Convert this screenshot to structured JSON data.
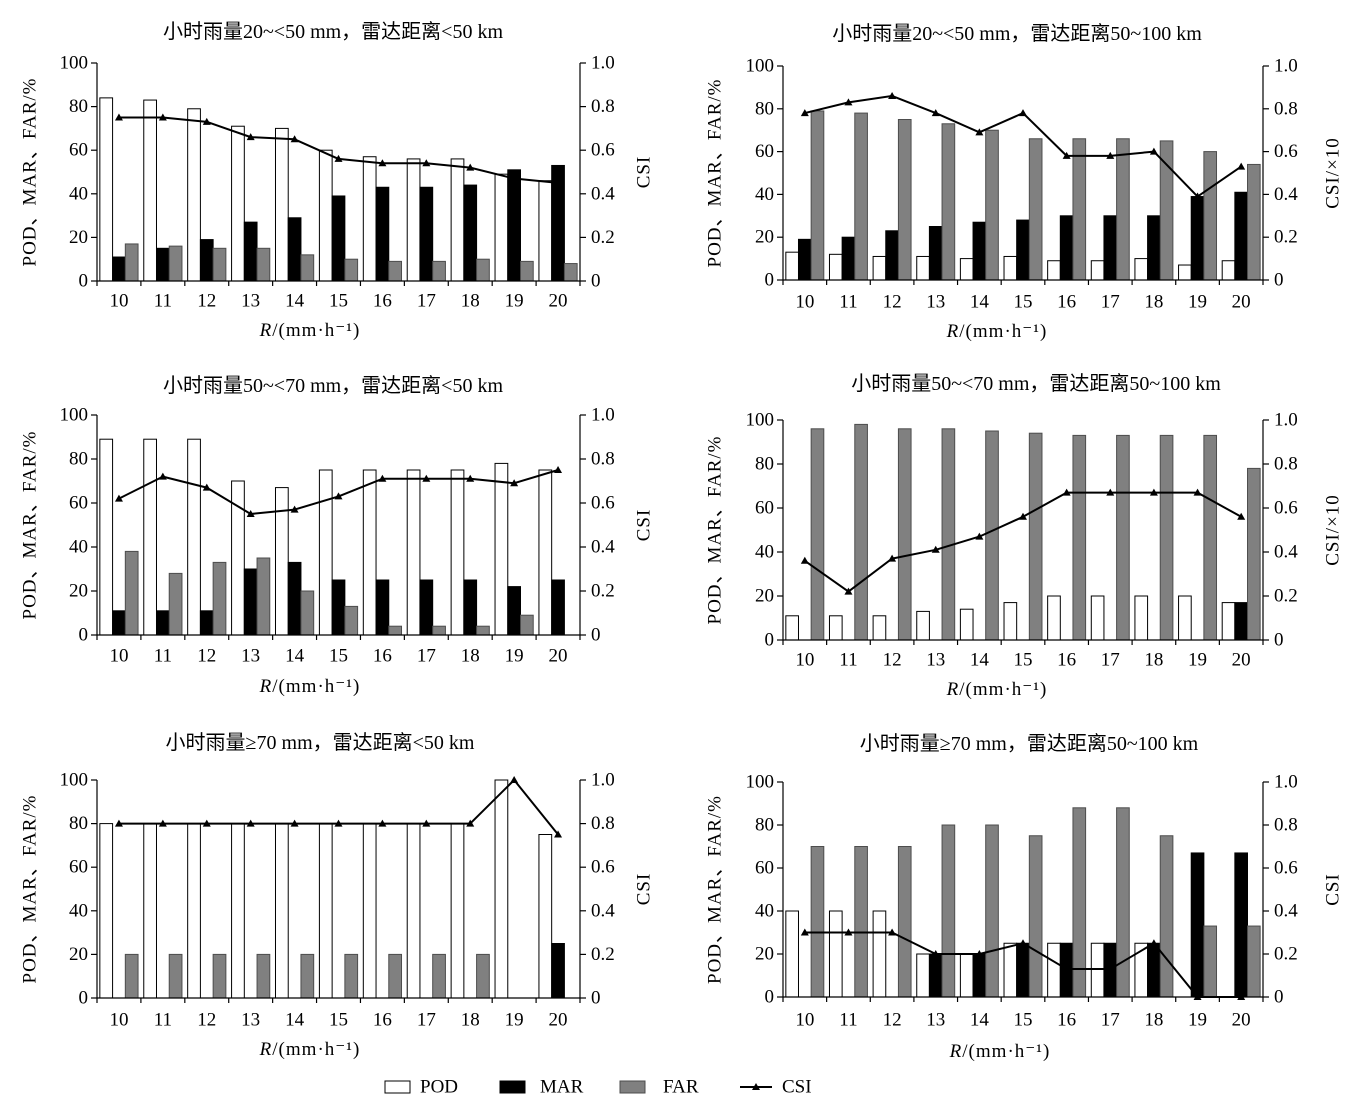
{
  "legend_position": "bottom-center",
  "legend": [
    {
      "label": "POD",
      "symbol": "box",
      "color": "#ffffff"
    },
    {
      "label": "MAR",
      "symbol": "box",
      "color": "#000000"
    },
    {
      "label": "FAR",
      "symbol": "box",
      "color": "#808080"
    },
    {
      "label": "CSI",
      "symbol": "line-triangle",
      "color": "#000000"
    }
  ],
  "chart_data": [
    {
      "type": "bar",
      "title": "小时雨量20~<50 mm，雷达距离<50 km",
      "xlabel": "R/(mm·h⁻¹)",
      "ylabel": "POD、MAR、FAR/%",
      "y2label": "CSI",
      "categories": [
        "10",
        "11",
        "12",
        "13",
        "14",
        "15",
        "16",
        "17",
        "18",
        "19",
        "20"
      ],
      "ylim": [
        0,
        100
      ],
      "y2lim": [
        0,
        1.0
      ],
      "yticks": [
        "0",
        "20",
        "40",
        "60",
        "80",
        "100"
      ],
      "y2ticks": [
        "0",
        "0.2",
        "0.4",
        "0.6",
        "0.8",
        "1.0"
      ],
      "grid": false,
      "series": [
        {
          "name": "POD",
          "type": "bar",
          "axis": "left",
          "values": [
            84,
            83,
            79,
            71,
            70,
            60,
            57,
            56,
            56,
            49,
            46
          ]
        },
        {
          "name": "MAR",
          "type": "bar",
          "axis": "left",
          "values": [
            11,
            15,
            19,
            27,
            29,
            39,
            43,
            43,
            44,
            51,
            53
          ]
        },
        {
          "name": "FAR",
          "type": "bar",
          "axis": "left",
          "values": [
            17,
            16,
            15,
            15,
            12,
            10,
            9,
            9,
            10,
            9,
            8
          ]
        },
        {
          "name": "CSI",
          "type": "line",
          "axis": "right",
          "values": [
            0.75,
            0.75,
            0.73,
            0.66,
            0.65,
            0.56,
            0.54,
            0.54,
            0.52,
            0.47,
            0.45
          ]
        }
      ]
    },
    {
      "type": "bar",
      "title": "小时雨量20~<50 mm，雷达距离50~100 km",
      "xlabel": "R/(mm·h⁻¹)",
      "ylabel": "POD、MAR、FAR/%",
      "y2label": "CSI/×10",
      "categories": [
        "10",
        "11",
        "12",
        "13",
        "14",
        "15",
        "16",
        "17",
        "18",
        "19",
        "20"
      ],
      "ylim": [
        0,
        100
      ],
      "y2lim": [
        0,
        1.0
      ],
      "yticks": [
        "0",
        "20",
        "40",
        "60",
        "80",
        "100"
      ],
      "y2ticks": [
        "0",
        "0.2",
        "0.4",
        "0.6",
        "0.8",
        "1.0"
      ],
      "grid": false,
      "series": [
        {
          "name": "POD",
          "type": "bar",
          "axis": "left",
          "values": [
            13,
            12,
            11,
            11,
            10,
            11,
            9,
            9,
            10,
            7,
            9
          ]
        },
        {
          "name": "MAR",
          "type": "bar",
          "axis": "left",
          "values": [
            19,
            20,
            23,
            25,
            27,
            28,
            30,
            30,
            30,
            39,
            41
          ]
        },
        {
          "name": "FAR",
          "type": "bar",
          "axis": "left",
          "values": [
            79,
            78,
            75,
            73,
            70,
            66,
            66,
            66,
            65,
            60,
            54
          ]
        },
        {
          "name": "CSI",
          "type": "line",
          "axis": "right",
          "values": [
            0.78,
            0.83,
            0.86,
            0.78,
            0.69,
            0.78,
            0.58,
            0.58,
            0.6,
            0.39,
            0.53
          ]
        }
      ]
    },
    {
      "type": "bar",
      "title": "小时雨量50~<70 mm，雷达距离<50 km",
      "xlabel": "R/(mm·h⁻¹)",
      "ylabel": "POD、MAR、FAR/%",
      "y2label": "CSI",
      "categories": [
        "10",
        "11",
        "12",
        "13",
        "14",
        "15",
        "16",
        "17",
        "18",
        "19",
        "20"
      ],
      "ylim": [
        0,
        100
      ],
      "y2lim": [
        0,
        1.0
      ],
      "yticks": [
        "0",
        "20",
        "40",
        "60",
        "80",
        "100"
      ],
      "y2ticks": [
        "0",
        "0.2",
        "0.4",
        "0.6",
        "0.8",
        "1.0"
      ],
      "grid": false,
      "series": [
        {
          "name": "POD",
          "type": "bar",
          "axis": "left",
          "values": [
            89,
            89,
            89,
            70,
            67,
            75,
            75,
            75,
            75,
            78,
            75
          ]
        },
        {
          "name": "MAR",
          "type": "bar",
          "axis": "left",
          "values": [
            11,
            11,
            11,
            30,
            33,
            25,
            25,
            25,
            25,
            22,
            25
          ]
        },
        {
          "name": "FAR",
          "type": "bar",
          "axis": "left",
          "values": [
            38,
            28,
            33,
            35,
            20,
            13,
            4,
            4,
            4,
            9,
            0
          ]
        },
        {
          "name": "CSI",
          "type": "line",
          "axis": "right",
          "values": [
            0.62,
            0.72,
            0.67,
            0.55,
            0.57,
            0.63,
            0.71,
            0.71,
            0.71,
            0.69,
            0.75
          ]
        }
      ]
    },
    {
      "type": "bar",
      "title": "小时雨量50~<70 mm，雷达距离50~100 km",
      "xlabel": "R/(mm·h⁻¹)",
      "ylabel": "POD、MAR、FAR/%",
      "y2label": "CSI/×10",
      "categories": [
        "10",
        "11",
        "12",
        "13",
        "14",
        "15",
        "16",
        "17",
        "18",
        "19",
        "20"
      ],
      "ylim": [
        0,
        100
      ],
      "y2lim": [
        0,
        1.0
      ],
      "yticks": [
        "0",
        "20",
        "40",
        "60",
        "80",
        "100"
      ],
      "y2ticks": [
        "0",
        "0.2",
        "0.4",
        "0.6",
        "0.8",
        "1.0"
      ],
      "grid": false,
      "series": [
        {
          "name": "POD",
          "type": "bar",
          "axis": "left",
          "values": [
            11,
            11,
            11,
            13,
            14,
            17,
            20,
            20,
            20,
            20,
            17
          ]
        },
        {
          "name": "MAR",
          "type": "bar",
          "axis": "left",
          "values": [
            0,
            0,
            0,
            0,
            0,
            0,
            0,
            0,
            0,
            0,
            17
          ]
        },
        {
          "name": "FAR",
          "type": "bar",
          "axis": "left",
          "values": [
            96,
            98,
            96,
            96,
            95,
            94,
            93,
            93,
            93,
            93,
            78
          ]
        },
        {
          "name": "CSI",
          "type": "line",
          "axis": "right",
          "values": [
            0.36,
            0.22,
            0.37,
            0.41,
            0.47,
            0.56,
            0.67,
            0.67,
            0.67,
            0.67,
            0.56
          ]
        }
      ]
    },
    {
      "type": "bar",
      "title": "小时雨量≥70 mm，雷达距离<50 km",
      "xlabel": "R/(mm·h⁻¹)",
      "ylabel": "POD、MAR、FAR/%",
      "y2label": "CSI",
      "categories": [
        "10",
        "11",
        "12",
        "13",
        "14",
        "15",
        "16",
        "17",
        "18",
        "19",
        "20"
      ],
      "ylim": [
        0,
        100
      ],
      "y2lim": [
        0,
        1.0
      ],
      "yticks": [
        "0",
        "20",
        "40",
        "60",
        "80",
        "100"
      ],
      "y2ticks": [
        "0",
        "0.2",
        "0.4",
        "0.6",
        "0.8",
        "1.0"
      ],
      "grid": false,
      "series": [
        {
          "name": "POD",
          "type": "bar",
          "axis": "left",
          "values": [
            80,
            80,
            80,
            80,
            80,
            80,
            80,
            80,
            80,
            100,
            75
          ]
        },
        {
          "name": "MAR",
          "type": "bar",
          "axis": "left",
          "values": [
            0,
            0,
            0,
            0,
            0,
            0,
            0,
            0,
            0,
            0,
            25
          ]
        },
        {
          "name": "FAR",
          "type": "bar",
          "axis": "left",
          "values": [
            20,
            20,
            20,
            20,
            20,
            20,
            20,
            20,
            20,
            0,
            0
          ]
        },
        {
          "name": "CSI",
          "type": "line",
          "axis": "right",
          "values": [
            0.8,
            0.8,
            0.8,
            0.8,
            0.8,
            0.8,
            0.8,
            0.8,
            0.8,
            1.0,
            0.75
          ]
        }
      ]
    },
    {
      "type": "bar",
      "title": "小时雨量≥70 mm，雷达距离50~100 km",
      "xlabel": "R/(mm·h⁻¹)",
      "ylabel": "POD、MAR、FAR/%",
      "y2label": "CSI",
      "categories": [
        "10",
        "11",
        "12",
        "13",
        "14",
        "15",
        "16",
        "17",
        "18",
        "19",
        "20"
      ],
      "ylim": [
        0,
        100
      ],
      "y2lim": [
        0,
        1.0
      ],
      "yticks": [
        "0",
        "20",
        "40",
        "60",
        "80",
        "100"
      ],
      "y2ticks": [
        "0",
        "0.2",
        "0.4",
        "0.6",
        "0.8",
        "1.0"
      ],
      "grid": false,
      "series": [
        {
          "name": "POD",
          "type": "bar",
          "axis": "left",
          "values": [
            40,
            40,
            40,
            20,
            20,
            25,
            25,
            25,
            25,
            0,
            0
          ]
        },
        {
          "name": "MAR",
          "type": "bar",
          "axis": "left",
          "values": [
            0,
            0,
            0,
            20,
            20,
            25,
            25,
            25,
            25,
            67,
            67
          ]
        },
        {
          "name": "FAR",
          "type": "bar",
          "axis": "left",
          "values": [
            70,
            70,
            70,
            80,
            80,
            75,
            88,
            88,
            75,
            33,
            33
          ]
        },
        {
          "name": "CSI",
          "type": "line",
          "axis": "right",
          "values": [
            0.3,
            0.3,
            0.3,
            0.2,
            0.2,
            0.25,
            0.13,
            0.13,
            0.25,
            0.0,
            0.0
          ]
        }
      ]
    }
  ]
}
